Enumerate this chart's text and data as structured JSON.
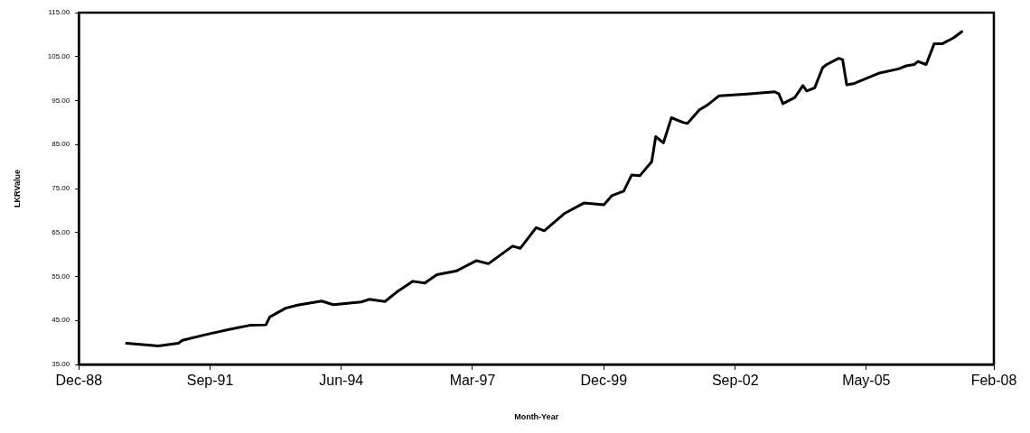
{
  "chart_data": {
    "type": "line",
    "xlabel": "Month-Year",
    "ylabel": "LKRValue",
    "line_style": "solid",
    "x": [
      "1989-12",
      "1990-08",
      "1991-01",
      "1991-02",
      "1991-08",
      "1992-02",
      "1992-07",
      "1992-11",
      "1992-12",
      "1993-04",
      "1993-07",
      "1994-01",
      "1994-04",
      "1994-11",
      "1995-01",
      "1995-05",
      "1995-08",
      "1995-12",
      "1996-03",
      "1996-06",
      "1996-11",
      "1997-04",
      "1997-07",
      "1998-01",
      "1998-03",
      "1998-07",
      "1998-09",
      "1999-02",
      "1999-07",
      "1999-12",
      "2000-02",
      "2000-05",
      "2000-07",
      "2000-09",
      "2000-12",
      "2001-01",
      "2001-03",
      "2001-05",
      "2001-08",
      "2001-09",
      "2001-12",
      "2002-02",
      "2002-05",
      "2002-12",
      "2003-07",
      "2003-08",
      "2003-09",
      "2003-12",
      "2004-02",
      "2004-03",
      "2004-05",
      "2004-07",
      "2004-08",
      "2004-11",
      "2004-12",
      "2005-01",
      "2005-03",
      "2005-09",
      "2006-02",
      "2006-04",
      "2006-06",
      "2006-07",
      "2006-09",
      "2006-11",
      "2007-01",
      "2007-04",
      "2007-06"
    ],
    "series": [
      {
        "color": "#000000",
        "values": [
          39.8,
          39.2,
          39.8,
          40.5,
          41.8,
          43.0,
          43.9,
          44.0,
          45.8,
          47.8,
          48.5,
          49.4,
          48.6,
          49.2,
          49.8,
          49.3,
          51.5,
          53.9,
          53.5,
          55.4,
          56.3,
          58.6,
          57.9,
          61.9,
          61.4,
          66.1,
          65.4,
          69.3,
          71.7,
          71.3,
          73.4,
          74.4,
          78.1,
          77.9,
          81.1,
          86.8,
          85.4,
          91.1,
          90.0,
          89.8,
          92.9,
          94.0,
          96.1,
          96.5,
          97.0,
          96.5,
          94.3,
          95.7,
          98.4,
          97.2,
          97.9,
          102.5,
          103.2,
          104.6,
          104.3,
          98.6,
          98.9,
          101.2,
          102.2,
          102.9,
          103.2,
          103.9,
          103.2,
          107.9,
          107.9,
          109.3,
          110.7
        ]
      }
    ],
    "xlim": [
      "1988-12",
      "2008-02"
    ],
    "xticks": [
      {
        "value": "1988-12",
        "label": "Dec-88"
      },
      {
        "value": "1991-09",
        "label": "Sep-91"
      },
      {
        "value": "1994-06",
        "label": "Jun-94"
      },
      {
        "value": "1997-03",
        "label": "Mar-97"
      },
      {
        "value": "1999-12",
        "label": "Dec-99"
      },
      {
        "value": "2002-09",
        "label": "Sep-02"
      },
      {
        "value": "2005-05-31",
        "label": "May-05"
      },
      {
        "value": "2008-02",
        "label": "Feb-08"
      }
    ],
    "ylim": [
      35,
      115
    ],
    "yticks": [
      {
        "value": 35,
        "label": "35.00"
      },
      {
        "value": 45,
        "label": "45.00"
      },
      {
        "value": 55,
        "label": "55.00"
      },
      {
        "value": 65,
        "label": "65.00"
      },
      {
        "value": 75,
        "label": "75.00"
      },
      {
        "value": 85,
        "label": "85.00"
      },
      {
        "value": 95,
        "label": "95.00"
      },
      {
        "value": 105,
        "label": "105.00"
      },
      {
        "value": 115,
        "label": "115.00"
      }
    ]
  }
}
